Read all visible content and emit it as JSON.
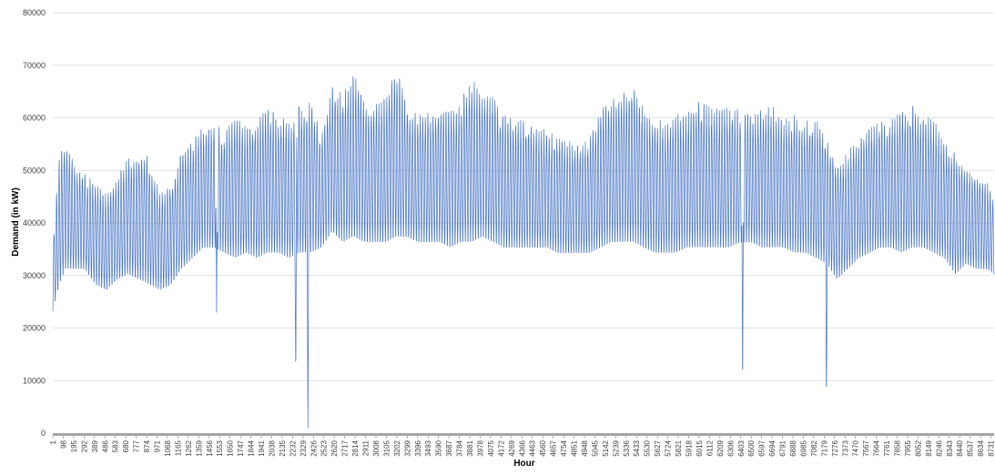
{
  "chart_data": {
    "type": "line",
    "title": "",
    "xlabel": "Hour",
    "ylabel": "Demand (in kW)",
    "ylim": [
      0,
      80000
    ],
    "xlim": [
      1,
      8760
    ],
    "y_ticks": [
      0,
      10000,
      20000,
      30000,
      40000,
      50000,
      60000,
      70000,
      80000
    ],
    "x_tick_labels": [
      "1",
      "98",
      "195",
      "292",
      "389",
      "486",
      "583",
      "680",
      "777",
      "874",
      "971",
      "1068",
      "1165",
      "1262",
      "1359",
      "1456",
      "1553",
      "1650",
      "1747",
      "1844",
      "1941",
      "2038",
      "2135",
      "2232",
      "2329",
      "2426",
      "2523",
      "2620",
      "2717",
      "2814",
      "2911",
      "3008",
      "3105",
      "3202",
      "3299",
      "3396",
      "3493",
      "3590",
      "3687",
      "3784",
      "3881",
      "3978",
      "4075",
      "4172",
      "4269",
      "4366",
      "4463",
      "4560",
      "4657",
      "4754",
      "4851",
      "4948",
      "5045",
      "5142",
      "5239",
      "5336",
      "5433",
      "5530",
      "5627",
      "5724",
      "5821",
      "5918",
      "6015",
      "6112",
      "6209",
      "6306",
      "6403",
      "6500",
      "6597",
      "6694",
      "6791",
      "6888",
      "6985",
      "7082",
      "7179",
      "7276",
      "7373",
      "7470",
      "7567",
      "7664",
      "7761",
      "7858",
      "7955",
      "8052",
      "8149",
      "8246",
      "8343",
      "8440",
      "8537",
      "8634",
      "8731"
    ],
    "grid": true,
    "legend": "none",
    "series_color": "#4472c4",
    "series": [
      {
        "name": "",
        "envelope_points": [
          {
            "x": 1,
            "min": 23000,
            "max": 36000
          },
          {
            "x": 60,
            "min": 28000,
            "max": 53000
          },
          {
            "x": 120,
            "min": 31000,
            "max": 57000
          },
          {
            "x": 200,
            "min": 31000,
            "max": 52000
          },
          {
            "x": 300,
            "min": 31000,
            "max": 50000
          },
          {
            "x": 400,
            "min": 28000,
            "max": 48000
          },
          {
            "x": 500,
            "min": 27000,
            "max": 46000
          },
          {
            "x": 600,
            "min": 29000,
            "max": 49000
          },
          {
            "x": 700,
            "min": 30000,
            "max": 53000
          },
          {
            "x": 800,
            "min": 29000,
            "max": 55000
          },
          {
            "x": 900,
            "min": 28000,
            "max": 53000
          },
          {
            "x": 1000,
            "min": 27000,
            "max": 46000
          },
          {
            "x": 1100,
            "min": 28000,
            "max": 48000
          },
          {
            "x": 1200,
            "min": 31000,
            "max": 54000
          },
          {
            "x": 1300,
            "min": 33000,
            "max": 56000
          },
          {
            "x": 1400,
            "min": 35000,
            "max": 59000
          },
          {
            "x": 1500,
            "min": 35000,
            "max": 60000
          },
          {
            "x": 1600,
            "min": 34000,
            "max": 58000
          },
          {
            "x": 1700,
            "min": 33000,
            "max": 61000
          },
          {
            "x": 1800,
            "min": 34000,
            "max": 59000
          },
          {
            "x": 1900,
            "min": 33000,
            "max": 60000
          },
          {
            "x": 2000,
            "min": 34000,
            "max": 63000
          },
          {
            "x": 2100,
            "min": 34000,
            "max": 61000
          },
          {
            "x": 2200,
            "min": 33000,
            "max": 60000
          },
          {
            "x": 2300,
            "min": 34000,
            "max": 63000
          },
          {
            "x": 2400,
            "min": 34000,
            "max": 64000
          },
          {
            "x": 2500,
            "min": 35000,
            "max": 58000
          },
          {
            "x": 2600,
            "min": 38000,
            "max": 67000
          },
          {
            "x": 2700,
            "min": 36000,
            "max": 65000
          },
          {
            "x": 2800,
            "min": 37000,
            "max": 69000
          },
          {
            "x": 2900,
            "min": 36000,
            "max": 64000
          },
          {
            "x": 3000,
            "min": 36000,
            "max": 63000
          },
          {
            "x": 3100,
            "min": 36000,
            "max": 65000
          },
          {
            "x": 3200,
            "min": 37000,
            "max": 70000
          },
          {
            "x": 3300,
            "min": 37000,
            "max": 63000
          },
          {
            "x": 3400,
            "min": 36000,
            "max": 61000
          },
          {
            "x": 3500,
            "min": 36000,
            "max": 62000
          },
          {
            "x": 3600,
            "min": 36000,
            "max": 63000
          },
          {
            "x": 3700,
            "min": 35000,
            "max": 62000
          },
          {
            "x": 3800,
            "min": 36000,
            "max": 64000
          },
          {
            "x": 3900,
            "min": 36000,
            "max": 68000
          },
          {
            "x": 4000,
            "min": 37000,
            "max": 66000
          },
          {
            "x": 4100,
            "min": 36000,
            "max": 65000
          },
          {
            "x": 4200,
            "min": 35000,
            "max": 61000
          },
          {
            "x": 4300,
            "min": 35000,
            "max": 60000
          },
          {
            "x": 4400,
            "min": 35000,
            "max": 60000
          },
          {
            "x": 4500,
            "min": 35000,
            "max": 59000
          },
          {
            "x": 4600,
            "min": 35000,
            "max": 58000
          },
          {
            "x": 4700,
            "min": 34000,
            "max": 57000
          },
          {
            "x": 4800,
            "min": 34000,
            "max": 56000
          },
          {
            "x": 4900,
            "min": 34000,
            "max": 55000
          },
          {
            "x": 5000,
            "min": 34000,
            "max": 57000
          },
          {
            "x": 5100,
            "min": 35000,
            "max": 62000
          },
          {
            "x": 5200,
            "min": 36000,
            "max": 64000
          },
          {
            "x": 5300,
            "min": 36000,
            "max": 65000
          },
          {
            "x": 5400,
            "min": 36000,
            "max": 68000
          },
          {
            "x": 5500,
            "min": 35000,
            "max": 62000
          },
          {
            "x": 5600,
            "min": 34000,
            "max": 60000
          },
          {
            "x": 5700,
            "min": 34000,
            "max": 60000
          },
          {
            "x": 5800,
            "min": 34000,
            "max": 61000
          },
          {
            "x": 5900,
            "min": 35000,
            "max": 62000
          },
          {
            "x": 6000,
            "min": 35000,
            "max": 64000
          },
          {
            "x": 6100,
            "min": 35000,
            "max": 63000
          },
          {
            "x": 6200,
            "min": 35000,
            "max": 62000
          },
          {
            "x": 6300,
            "min": 35000,
            "max": 63000
          },
          {
            "x": 6400,
            "min": 36000,
            "max": 62000
          },
          {
            "x": 6500,
            "min": 36000,
            "max": 61000
          },
          {
            "x": 6600,
            "min": 35000,
            "max": 62000
          },
          {
            "x": 6700,
            "min": 35000,
            "max": 63000
          },
          {
            "x": 6800,
            "min": 35000,
            "max": 60000
          },
          {
            "x": 6900,
            "min": 34000,
            "max": 61000
          },
          {
            "x": 7000,
            "min": 34000,
            "max": 60000
          },
          {
            "x": 7100,
            "min": 33000,
            "max": 61000
          },
          {
            "x": 7200,
            "min": 32000,
            "max": 57000
          },
          {
            "x": 7300,
            "min": 29000,
            "max": 52000
          },
          {
            "x": 7400,
            "min": 31000,
            "max": 54000
          },
          {
            "x": 7500,
            "min": 33000,
            "max": 57000
          },
          {
            "x": 7600,
            "min": 34000,
            "max": 59000
          },
          {
            "x": 7700,
            "min": 35000,
            "max": 60000
          },
          {
            "x": 7800,
            "min": 35000,
            "max": 60000
          },
          {
            "x": 7900,
            "min": 34000,
            "max": 62000
          },
          {
            "x": 8000,
            "min": 35000,
            "max": 63000
          },
          {
            "x": 8100,
            "min": 35000,
            "max": 61000
          },
          {
            "x": 8200,
            "min": 34000,
            "max": 60000
          },
          {
            "x": 8300,
            "min": 33000,
            "max": 56000
          },
          {
            "x": 8400,
            "min": 30000,
            "max": 54000
          },
          {
            "x": 8500,
            "min": 32000,
            "max": 51000
          },
          {
            "x": 8600,
            "min": 31000,
            "max": 50000
          },
          {
            "x": 8700,
            "min": 31000,
            "max": 48000
          },
          {
            "x": 8760,
            "min": 30000,
            "max": 45000
          }
        ],
        "daily_cycle_hours": 24,
        "dips": [
          {
            "x": 1525,
            "value": 23000
          },
          {
            "x": 2262,
            "value": 9500
          },
          {
            "x": 2375,
            "value": 1000
          },
          {
            "x": 6420,
            "value": 5500
          },
          {
            "x": 7200,
            "value": 5500
          }
        ]
      }
    ]
  }
}
